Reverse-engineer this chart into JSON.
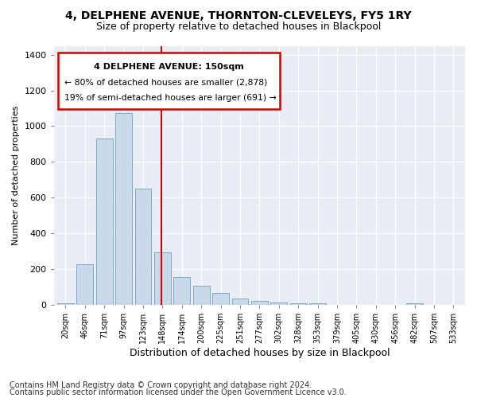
{
  "title1": "4, DELPHENE AVENUE, THORNTON-CLEVELEYS, FY5 1RY",
  "title2": "Size of property relative to detached houses in Blackpool",
  "xlabel": "Distribution of detached houses by size in Blackpool",
  "ylabel": "Number of detached properties",
  "footer1": "Contains HM Land Registry data © Crown copyright and database right 2024.",
  "footer2": "Contains public sector information licensed under the Open Government Licence v3.0.",
  "categories": [
    "20sqm",
    "46sqm",
    "71sqm",
    "97sqm",
    "123sqm",
    "148sqm",
    "174sqm",
    "200sqm",
    "225sqm",
    "251sqm",
    "277sqm",
    "302sqm",
    "328sqm",
    "353sqm",
    "379sqm",
    "405sqm",
    "430sqm",
    "456sqm",
    "482sqm",
    "507sqm",
    "533sqm"
  ],
  "values": [
    10,
    225,
    930,
    1075,
    650,
    295,
    155,
    105,
    65,
    35,
    20,
    15,
    10,
    10,
    0,
    0,
    0,
    0,
    10,
    0,
    0
  ],
  "bar_color": "#c9d9ea",
  "bar_edgecolor": "#7aaac8",
  "vline_x_index": 5,
  "vline_color": "#cc0000",
  "annotation_title": "4 DELPHENE AVENUE: 150sqm",
  "annotation_line1": "← 80% of detached houses are smaller (2,878)",
  "annotation_line2": "19% of semi-detached houses are larger (691) →",
  "annotation_box_color": "#cc0000",
  "ylim": [
    0,
    1450
  ],
  "yticks": [
    0,
    200,
    400,
    600,
    800,
    1000,
    1200,
    1400
  ],
  "bg_color": "#ffffff",
  "plot_bg_color": "#eaeef4",
  "grid_color": "#ffffff",
  "title1_fontsize": 10,
  "title2_fontsize": 9,
  "footer_fontsize": 7
}
